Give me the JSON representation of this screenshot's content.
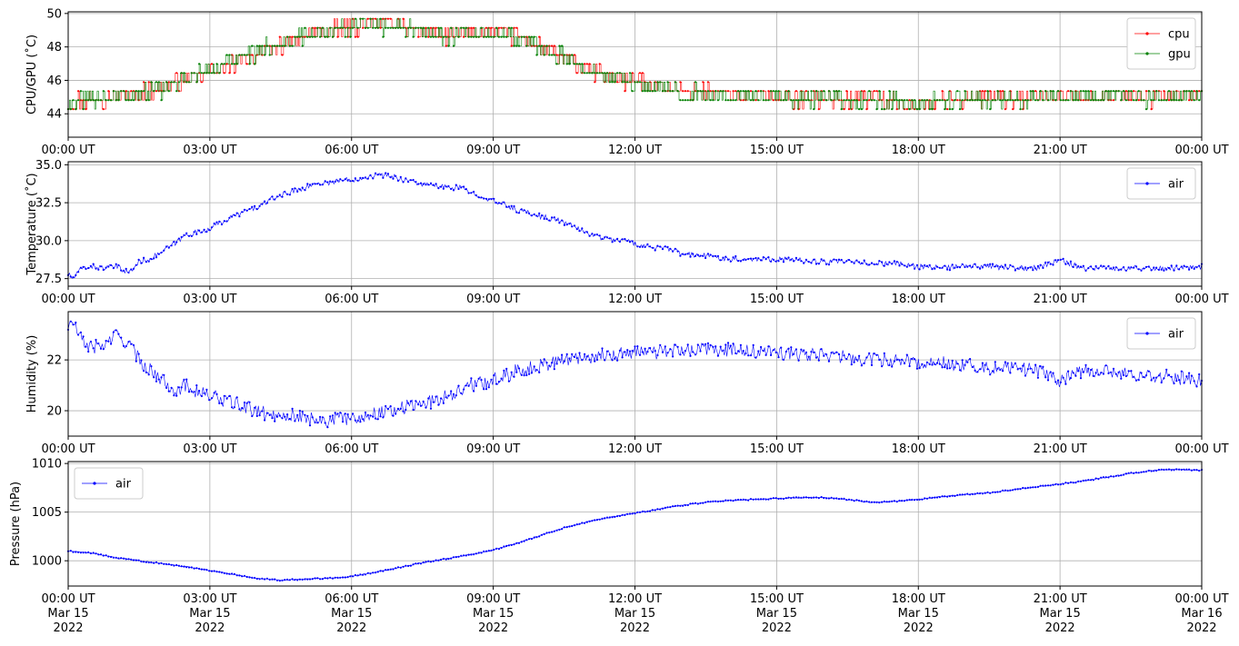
{
  "chart_data": [
    {
      "type": "line",
      "ylabel": "CPU/GPU (˚C)",
      "ylim": [
        42.6,
        50.1
      ],
      "yticks": [
        44,
        46,
        48,
        50
      ],
      "xlim": [
        "00:00 UT",
        "24:00 UT"
      ],
      "xtick_labels": [
        "00:00 UT",
        "03:00 UT",
        "06:00 UT",
        "09:00 UT",
        "12:00 UT",
        "15:00 UT",
        "18:00 UT",
        "21:00 UT",
        "00:00 UT"
      ],
      "grid": true,
      "legend": "upper right",
      "series": [
        {
          "name": "cpu",
          "color": "#ff0000",
          "x_hours": [
            0,
            0.5,
            1,
            1.5,
            2,
            2.5,
            3,
            3.5,
            4,
            4.5,
            5,
            5.5,
            6,
            6.5,
            7,
            7.5,
            8,
            8.5,
            9,
            9.5,
            10,
            10.5,
            11,
            11.5,
            12,
            12.5,
            13,
            13.5,
            14,
            14.5,
            15,
            15.5,
            16,
            16.5,
            17,
            17.5,
            18,
            18.5,
            19,
            19.5,
            20,
            20.5,
            21,
            21.5,
            22,
            22.5,
            23,
            23.5,
            24
          ],
          "values": [
            44.7,
            44.9,
            45.0,
            45.2,
            45.6,
            46.0,
            46.5,
            47.0,
            47.6,
            48.1,
            48.6,
            48.9,
            49.2,
            49.4,
            49.3,
            48.9,
            48.7,
            48.8,
            48.9,
            48.6,
            48.0,
            47.4,
            46.6,
            46.2,
            45.9,
            45.7,
            45.3,
            45.3,
            45.2,
            45.0,
            45.0,
            44.9,
            44.9,
            44.8,
            45.0,
            44.7,
            44.6,
            44.8,
            44.9,
            44.9,
            44.8,
            45.0,
            45.0,
            45.1,
            45.0,
            45.1,
            44.9,
            45.1,
            45.2
          ]
        },
        {
          "name": "gpu",
          "color": "#008000",
          "x_hours": [
            0,
            0.5,
            1,
            1.5,
            2,
            2.5,
            3,
            3.5,
            4,
            4.5,
            5,
            5.5,
            6,
            6.5,
            7,
            7.5,
            8,
            8.5,
            9,
            9.5,
            10,
            10.5,
            11,
            11.5,
            12,
            12.5,
            13,
            13.5,
            14,
            14.5,
            15,
            15.5,
            16,
            16.5,
            17,
            17.5,
            18,
            18.5,
            19,
            19.5,
            20,
            20.5,
            21,
            21.5,
            22,
            22.5,
            23,
            23.5,
            24
          ],
          "values": [
            44.6,
            44.9,
            45.0,
            45.2,
            45.5,
            46.0,
            46.6,
            47.1,
            47.7,
            48.2,
            48.7,
            49.0,
            49.2,
            49.3,
            49.2,
            48.9,
            48.7,
            48.8,
            48.8,
            48.5,
            48.0,
            47.4,
            46.6,
            46.2,
            45.8,
            45.6,
            45.3,
            45.2,
            45.1,
            45.0,
            45.0,
            44.9,
            44.9,
            44.8,
            44.9,
            44.7,
            44.5,
            44.8,
            44.9,
            44.9,
            44.8,
            45.0,
            45.0,
            45.1,
            45.0,
            45.0,
            44.9,
            45.0,
            45.1
          ]
        }
      ]
    },
    {
      "type": "line",
      "ylabel": "Temperature (˚C)",
      "ylim": [
        27.0,
        35.2
      ],
      "yticks": [
        27.5,
        30.0,
        32.5,
        35.0
      ],
      "ytick_labels": [
        "27.5",
        "30.0",
        "32.5",
        "35.0"
      ],
      "xlim": [
        "00:00 UT",
        "24:00 UT"
      ],
      "xtick_labels": [
        "00:00 UT",
        "03:00 UT",
        "06:00 UT",
        "09:00 UT",
        "12:00 UT",
        "15:00 UT",
        "18:00 UT",
        "21:00 UT",
        "00:00 UT"
      ],
      "grid": true,
      "legend": "upper right",
      "series": [
        {
          "name": "air",
          "color": "#0000ff",
          "x_hours": [
            0,
            0.1,
            0.3,
            0.5,
            0.8,
            1,
            1.3,
            1.5,
            1.8,
            2,
            2.3,
            2.5,
            2.8,
            3,
            3.3,
            3.5,
            3.8,
            4,
            4.3,
            4.5,
            4.8,
            5,
            5.3,
            5.5,
            5.8,
            6,
            6.3,
            6.5,
            6.8,
            7,
            7.3,
            7.5,
            7.8,
            8,
            8.3,
            8.5,
            8.8,
            9,
            9.3,
            9.5,
            9.8,
            10,
            10.3,
            10.5,
            10.8,
            11,
            11.3,
            11.5,
            11.8,
            12,
            12.3,
            12.5,
            12.8,
            13,
            13.5,
            14,
            14.5,
            15,
            15.5,
            16,
            16.5,
            17,
            17.5,
            18,
            18.5,
            19,
            19.5,
            20,
            20.5,
            21,
            21.5,
            22,
            22.5,
            23,
            23.5,
            24
          ],
          "values": [
            27.8,
            27.5,
            28.2,
            28.3,
            28.2,
            28.3,
            27.9,
            28.6,
            28.9,
            29.3,
            29.9,
            30.4,
            30.6,
            30.8,
            31.3,
            31.6,
            32.0,
            32.2,
            32.7,
            33.0,
            33.3,
            33.5,
            33.8,
            33.8,
            34.0,
            34.0,
            34.2,
            34.3,
            34.3,
            34.1,
            33.9,
            33.7,
            33.6,
            33.5,
            33.5,
            33.2,
            32.9,
            32.6,
            32.3,
            32.0,
            31.8,
            31.6,
            31.4,
            31.2,
            30.8,
            30.5,
            30.2,
            30.1,
            30.0,
            29.8,
            29.6,
            29.5,
            29.4,
            29.1,
            29.0,
            28.8,
            28.8,
            28.8,
            28.7,
            28.6,
            28.6,
            28.5,
            28.5,
            28.3,
            28.2,
            28.3,
            28.3,
            28.2,
            28.2,
            28.7,
            28.2,
            28.2,
            28.2,
            28.2,
            28.2,
            28.3
          ]
        }
      ]
    },
    {
      "type": "line",
      "ylabel": "Humidity (%)",
      "ylim": [
        19.0,
        23.9
      ],
      "yticks": [
        20,
        22
      ],
      "xlim": [
        "00:00 UT",
        "24:00 UT"
      ],
      "xtick_labels": [
        "00:00 UT",
        "03:00 UT",
        "06:00 UT",
        "09:00 UT",
        "12:00 UT",
        "15:00 UT",
        "18:00 UT",
        "21:00 UT",
        "00:00 UT"
      ],
      "grid": true,
      "legend": "upper right",
      "series": [
        {
          "name": "air",
          "color": "#0000ff",
          "x_hours": [
            0,
            0.1,
            0.3,
            0.5,
            0.8,
            1,
            1.3,
            1.5,
            1.8,
            2,
            2.3,
            2.5,
            2.8,
            3,
            3.3,
            3.5,
            3.8,
            4,
            4.3,
            4.5,
            4.8,
            5,
            5.3,
            5.5,
            5.8,
            6,
            6.3,
            6.5,
            6.8,
            7,
            7.3,
            7.5,
            7.8,
            8,
            8.3,
            8.5,
            8.8,
            9,
            9.3,
            9.5,
            9.8,
            10,
            10.3,
            10.5,
            10.8,
            11,
            11.3,
            11.5,
            11.8,
            12,
            12.5,
            13,
            13.5,
            14,
            14.5,
            15,
            15.5,
            16,
            16.5,
            17,
            17.5,
            18,
            18.5,
            19,
            19.5,
            20,
            20.5,
            21,
            21.5,
            22,
            22.5,
            23,
            23.5,
            24
          ],
          "values": [
            23.3,
            23.5,
            22.7,
            22.5,
            22.6,
            23.0,
            22.6,
            22.0,
            21.5,
            21.2,
            20.8,
            21.0,
            20.7,
            20.6,
            20.4,
            20.3,
            20.1,
            20.0,
            19.8,
            19.9,
            19.8,
            19.7,
            19.7,
            19.6,
            19.7,
            19.7,
            19.8,
            19.9,
            20.0,
            20.1,
            20.2,
            20.3,
            20.4,
            20.6,
            20.8,
            21.0,
            21.1,
            21.2,
            21.4,
            21.6,
            21.7,
            21.8,
            21.9,
            22.0,
            22.1,
            22.1,
            22.2,
            22.2,
            22.3,
            22.3,
            22.3,
            22.4,
            22.4,
            22.4,
            22.3,
            22.3,
            22.2,
            22.2,
            22.1,
            22.0,
            22.0,
            21.9,
            21.9,
            21.8,
            21.7,
            21.7,
            21.6,
            21.2,
            21.6,
            21.5,
            21.4,
            21.4,
            21.3,
            21.2
          ]
        }
      ]
    },
    {
      "type": "line",
      "ylabel": "Pressure (hPa)",
      "ylim": [
        997.4,
        1010.2
      ],
      "yticks": [
        1000,
        1005,
        1010
      ],
      "xlim": [
        "2022-03-15 00:00",
        "2022-03-16 00:00"
      ],
      "xtick_labels": [
        "00:00 UT",
        "03:00 UT",
        "06:00 UT",
        "09:00 UT",
        "12:00 UT",
        "15:00 UT",
        "18:00 UT",
        "21:00 UT",
        "00:00 UT"
      ],
      "xtick_dates": [
        "Mar 15",
        "Mar 15",
        "Mar 15",
        "Mar 15",
        "Mar 15",
        "Mar 15",
        "Mar 15",
        "Mar 15",
        "Mar 16"
      ],
      "xtick_years": [
        "2022",
        "2022",
        "2022",
        "2022",
        "2022",
        "2022",
        "2022",
        "2022",
        "2022"
      ],
      "grid": true,
      "legend": "upper left",
      "series": [
        {
          "name": "air",
          "color": "#0000ff",
          "x_hours": [
            0,
            0.5,
            1,
            1.5,
            2,
            2.5,
            3,
            3.5,
            4,
            4.5,
            5,
            5.5,
            6,
            6.5,
            7,
            7.5,
            8,
            8.5,
            9,
            9.5,
            10,
            10.5,
            11,
            11.5,
            12,
            12.5,
            13,
            13.5,
            14,
            14.5,
            15,
            15.5,
            16,
            16.5,
            17,
            17.5,
            18,
            18.5,
            19,
            19.5,
            20,
            20.5,
            21,
            21.5,
            22,
            22.5,
            23,
            23.5,
            24
          ],
          "values": [
            1001.0,
            1000.8,
            1000.3,
            1000.0,
            999.7,
            999.4,
            999.0,
            998.6,
            998.2,
            998.0,
            998.1,
            998.2,
            998.4,
            998.8,
            999.3,
            999.8,
            1000.2,
            1000.6,
            1001.1,
            1001.8,
            1002.6,
            1003.4,
            1004.0,
            1004.5,
            1004.9,
            1005.3,
            1005.7,
            1006.0,
            1006.2,
            1006.3,
            1006.4,
            1006.5,
            1006.5,
            1006.3,
            1006.0,
            1006.1,
            1006.3,
            1006.6,
            1006.8,
            1007.0,
            1007.3,
            1007.6,
            1007.9,
            1008.2,
            1008.6,
            1009.0,
            1009.3,
            1009.4,
            1009.3
          ]
        }
      ]
    }
  ]
}
